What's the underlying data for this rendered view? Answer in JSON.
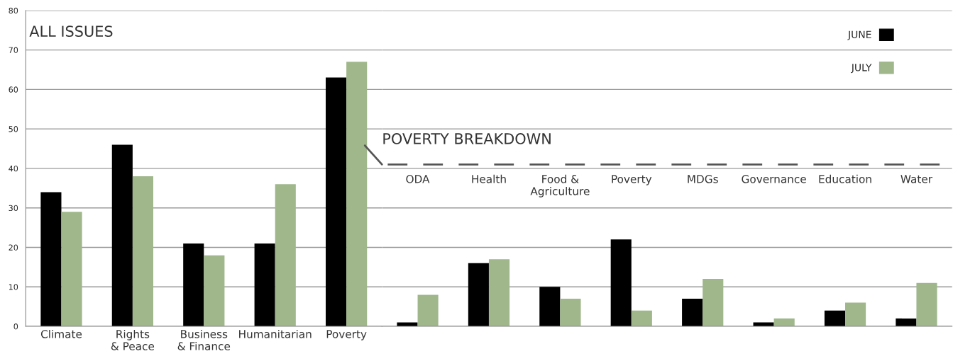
{
  "chart_data": [
    {
      "type": "bar",
      "title": "ALL ISSUES",
      "categories": [
        "Climate",
        "Rights\n& Peace",
        "Business\n& Finance",
        "Humanitarian",
        "Poverty"
      ],
      "series": [
        {
          "color": "#000000",
          "values": [
            34,
            46,
            21,
            21,
            63
          ]
        },
        {
          "color": "#9fb78b",
          "values": [
            29,
            38,
            18,
            36,
            67
          ]
        }
      ],
      "ylim": [
        0,
        80
      ],
      "yticks": [
        0,
        10,
        20,
        30,
        40,
        50,
        60,
        70,
        80
      ],
      "grid": "y"
    },
    {
      "type": "bar",
      "title": "POVERTY BREAKDOWN",
      "categories": [
        "ODA",
        "Health",
        "Food &\nAgriculture",
        "Poverty",
        "MDGs",
        "Governance",
        "Education",
        "Water"
      ],
      "series": [
        {
          "name": "JUNE",
          "color": "#000000",
          "values": [
            1,
            16,
            10,
            22,
            7,
            1,
            4,
            2
          ]
        },
        {
          "name": "JULY",
          "color": "#9fb78b",
          "values": [
            8,
            17,
            7,
            4,
            12,
            2,
            6,
            11
          ]
        }
      ],
      "ref_lines": [
        {
          "axis": "y",
          "value": 41,
          "color": "#555555",
          "line_style": "dashed"
        }
      ],
      "ylim": [
        0,
        80
      ],
      "tick_labels": "x",
      "grid": "y",
      "legend": "top right"
    }
  ]
}
